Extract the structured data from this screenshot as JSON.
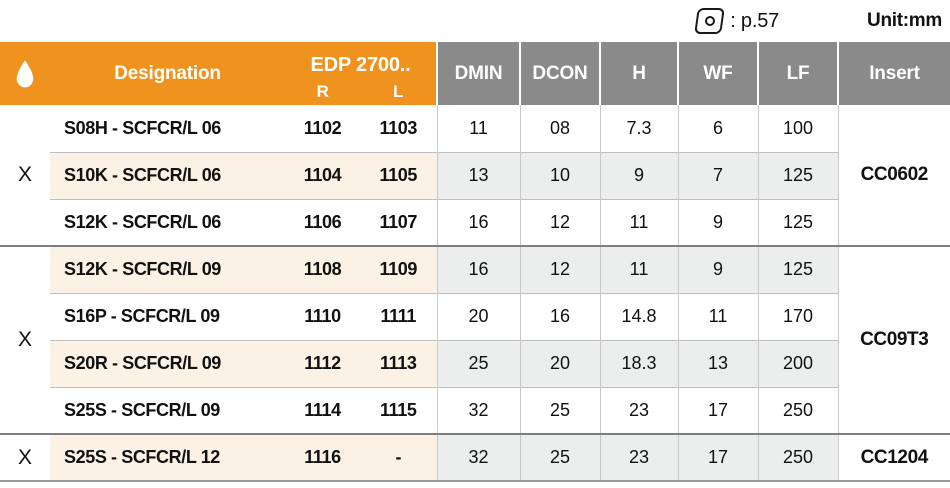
{
  "annotations": {
    "insert_icon": "cc-insert-shape-icon",
    "page_ref_label": ": p.57",
    "unit_label": "Unit:mm"
  },
  "table": {
    "header": {
      "drop_icon": "coolant-drop-icon",
      "designation": "Designation",
      "edp": "EDP 2700..",
      "edp_sub_r": "R",
      "edp_sub_l": "L",
      "dmin": "DMIN",
      "dcon": "DCON",
      "h": "H",
      "wf": "WF",
      "lf": "LF",
      "insert": "Insert"
    },
    "groups": [
      {
        "x_mark": "X",
        "insert": "CC0602",
        "rows": [
          {
            "designation": "S08H - SCFCR/L 06",
            "edp_r": "1102",
            "edp_l": "1103",
            "dmin": "11",
            "dcon": "08",
            "h": "7.3",
            "wf": "6",
            "lf": "100",
            "shaded": false
          },
          {
            "designation": "S10K - SCFCR/L 06",
            "edp_r": "1104",
            "edp_l": "1105",
            "dmin": "13",
            "dcon": "10",
            "h": "9",
            "wf": "7",
            "lf": "125",
            "shaded": true
          },
          {
            "designation": "S12K - SCFCR/L 06",
            "edp_r": "1106",
            "edp_l": "1107",
            "dmin": "16",
            "dcon": "12",
            "h": "11",
            "wf": "9",
            "lf": "125",
            "shaded": false
          }
        ]
      },
      {
        "x_mark": "X",
        "insert": "CC09T3",
        "rows": [
          {
            "designation": "S12K - SCFCR/L 09",
            "edp_r": "1108",
            "edp_l": "1109",
            "dmin": "16",
            "dcon": "12",
            "h": "11",
            "wf": "9",
            "lf": "125",
            "shaded": true
          },
          {
            "designation": "S16P - SCFCR/L 09",
            "edp_r": "1110",
            "edp_l": "1111",
            "dmin": "20",
            "dcon": "16",
            "h": "14.8",
            "wf": "11",
            "lf": "170",
            "shaded": false
          },
          {
            "designation": "S20R - SCFCR/L 09",
            "edp_r": "1112",
            "edp_l": "1113",
            "dmin": "25",
            "dcon": "20",
            "h": "18.3",
            "wf": "13",
            "lf": "200",
            "shaded": true
          },
          {
            "designation": "S25S - SCFCR/L 09",
            "edp_r": "1114",
            "edp_l": "1115",
            "dmin": "32",
            "dcon": "25",
            "h": "23",
            "wf": "17",
            "lf": "250",
            "shaded": false
          }
        ]
      },
      {
        "x_mark": "X",
        "insert": "CC1204",
        "rows": [
          {
            "designation": "S25S - SCFCR/L 12",
            "edp_r": "1116",
            "edp_l": "-",
            "dmin": "32",
            "dcon": "25",
            "h": "23",
            "wf": "17",
            "lf": "250",
            "shaded": true
          }
        ]
      }
    ]
  },
  "colors": {
    "header_orange": "#F0931E",
    "header_gray": "#8A8A8A",
    "row_warm": "#FBF2E5",
    "row_cool": "#ECEDED",
    "row_separator": "#BFBFBF",
    "group_separator": "#7E7E7E",
    "column_separator": "#C8C8C8",
    "header_text": "#FFFFFF",
    "body_text": "#111111"
  }
}
